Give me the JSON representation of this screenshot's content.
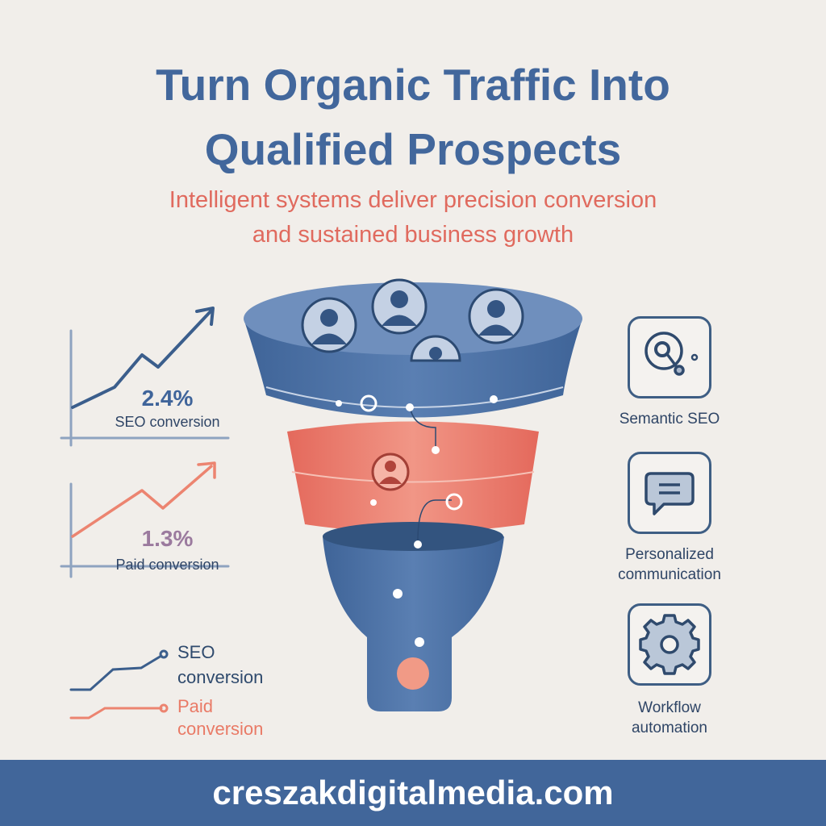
{
  "header": {
    "title_lines": [
      "Turn Organic Traffic Into",
      "Qualified Prospects"
    ],
    "subtitle_lines": [
      "Intelligent systems deliver precision conversion",
      "and sustained business growth"
    ]
  },
  "stats": [
    {
      "value": "2.4%",
      "label": "SEO conversion",
      "color": "#3f649a"
    },
    {
      "value": "1.3%",
      "label": "Paid conversion",
      "color": "#e97a66"
    }
  ],
  "legend": [
    {
      "line1": "SEO",
      "line2": "conversion",
      "color": "#2f4a6d"
    },
    {
      "line1": "Paid",
      "line2": "conversion",
      "color": "#e97a66"
    }
  ],
  "features": [
    {
      "icon": "semantic-search-icon",
      "lines": [
        "Semantic SEO"
      ]
    },
    {
      "icon": "chat-bubble-icon",
      "lines": [
        "Personalized",
        "communication"
      ]
    },
    {
      "icon": "gear-icon",
      "lines": [
        "Workflow",
        "automation"
      ]
    }
  ],
  "footer": {
    "url": "creszakdigitalmedia.com"
  },
  "colors": {
    "blue": "#4a6fa3",
    "coral": "#ec7b6c",
    "background": "#f1eeea"
  }
}
